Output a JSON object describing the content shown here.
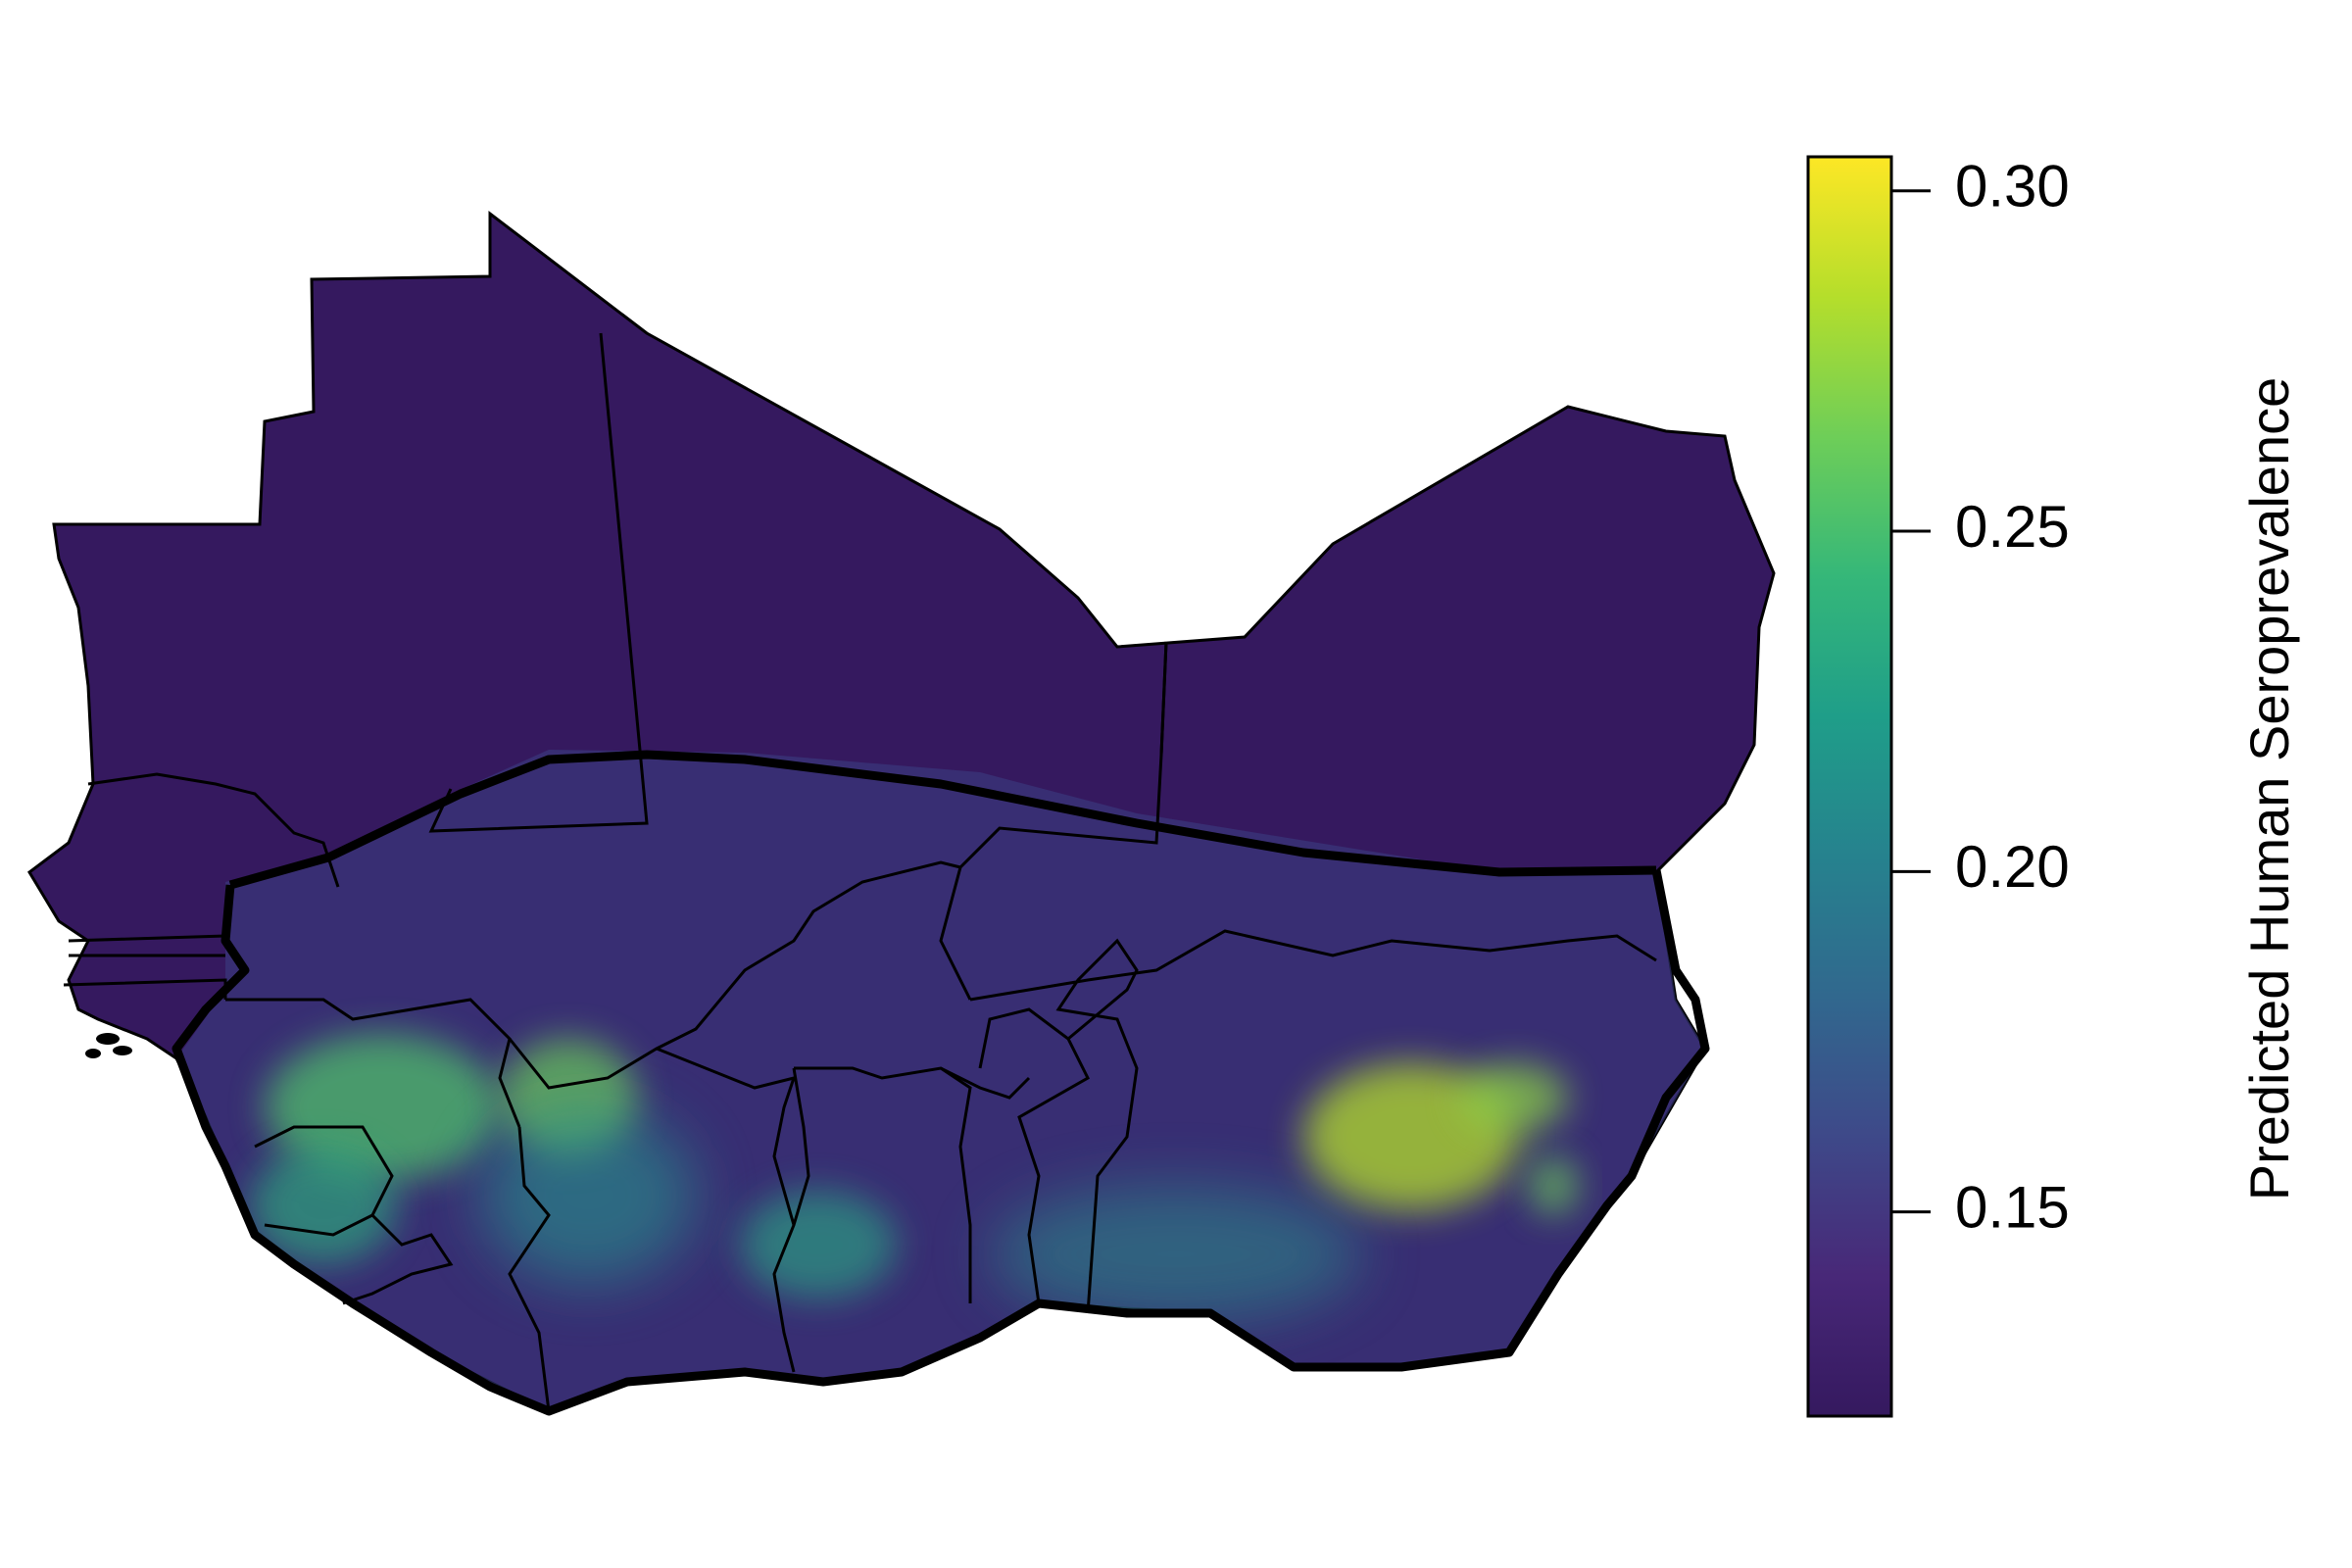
{
  "map": {
    "region": "West Africa",
    "base_fill_color": "#35195f",
    "border_color": "#000000",
    "hotspots": [
      {
        "name": "southern-band-low",
        "value": 0.16
      },
      {
        "name": "west-guinea",
        "value": 0.24
      },
      {
        "name": "burkina-cluster",
        "value": 0.25
      },
      {
        "name": "ghana-coast",
        "value": 0.21
      },
      {
        "name": "nigeria-central",
        "value": 0.28
      },
      {
        "name": "nigeria-east",
        "value": 0.26
      }
    ]
  },
  "legend": {
    "title": "Predicted Human Seroprevalence",
    "min": 0.12,
    "max": 0.305,
    "colors": [
      "#fde725",
      "#b5de2b",
      "#6ece58",
      "#35b779",
      "#1f9e89",
      "#26828e",
      "#31688e",
      "#3e4989",
      "#482878",
      "#35195f"
    ],
    "ticks": [
      {
        "value": 0.3,
        "label": "0.30"
      },
      {
        "value": 0.25,
        "label": "0.25"
      },
      {
        "value": 0.2,
        "label": "0.20"
      },
      {
        "value": 0.15,
        "label": "0.15"
      }
    ]
  }
}
